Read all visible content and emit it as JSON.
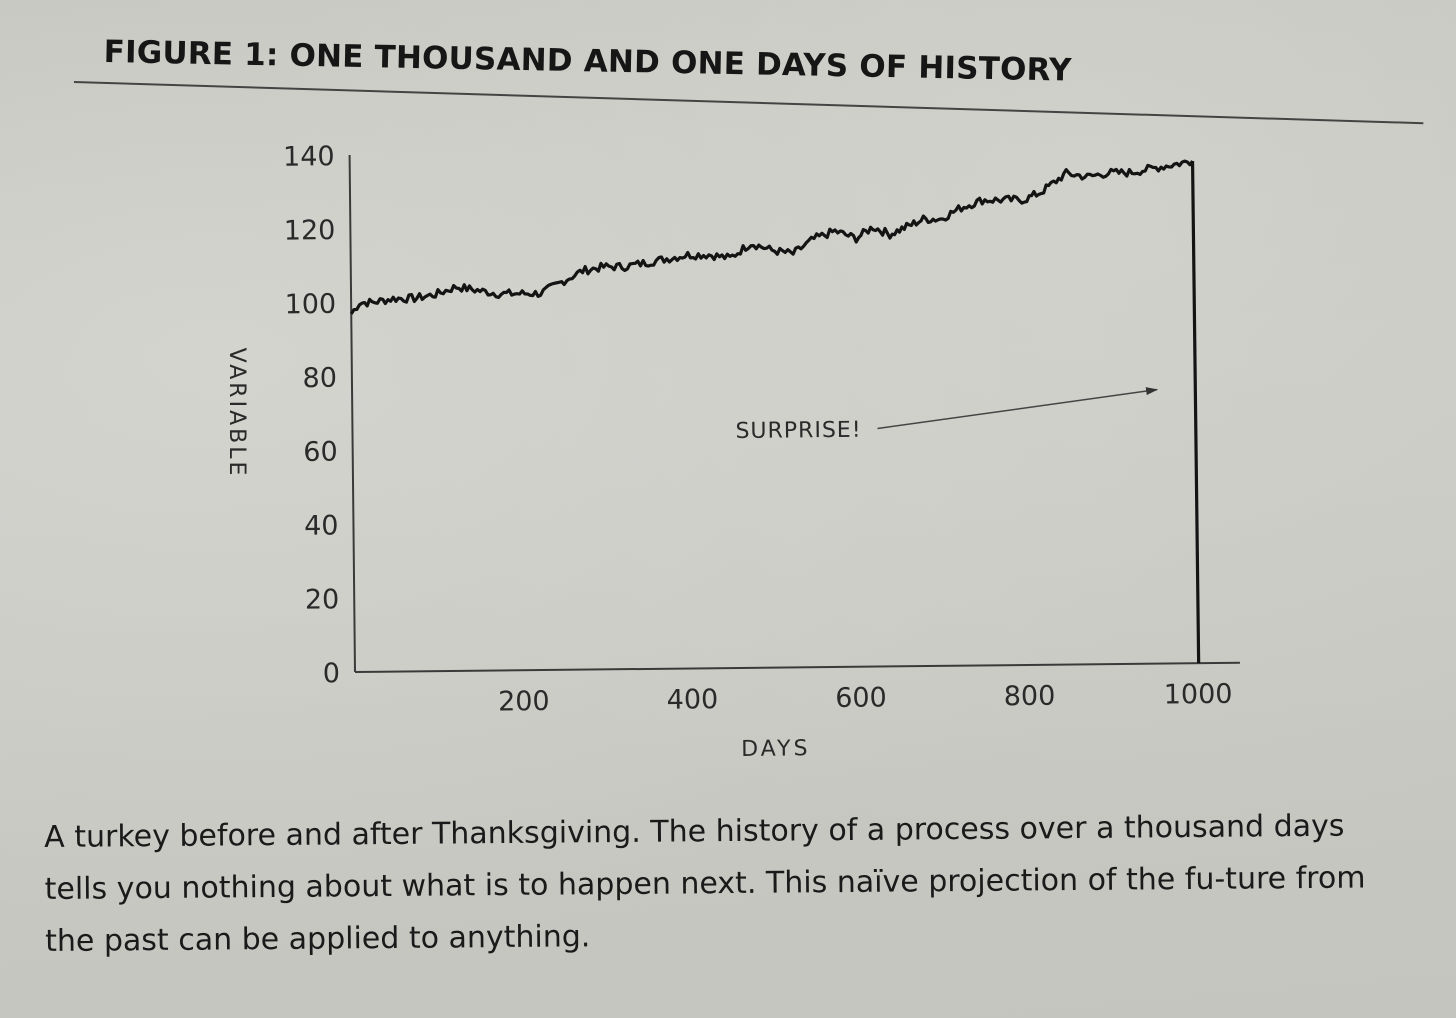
{
  "figure": {
    "title": "FIGURE 1: ONE THOUSAND AND ONE DAYS OF HISTORY",
    "caption": "A turkey before and after Thanksgiving. The history of a process over a thousand days tells you nothing about what is to happen next. This naïve projection of the fu-ture from the past can be applied to anything."
  },
  "chart_data": {
    "type": "line",
    "title": "FIGURE 1: ONE THOUSAND AND ONE DAYS OF HISTORY",
    "xlabel": "DAYS",
    "ylabel": "VARIABLE",
    "xlim": [
      0,
      1050
    ],
    "ylim": [
      0,
      140
    ],
    "xticks": [
      200,
      400,
      600,
      800,
      1000
    ],
    "yticks": [
      0,
      20,
      40,
      60,
      80,
      100,
      120,
      140
    ],
    "grid": false,
    "annotation": "SURPRISE!",
    "series": [
      {
        "x": [
          0,
          10,
          25,
          50,
          75,
          100,
          125,
          150,
          175,
          200,
          225,
          250,
          275,
          300,
          325,
          350,
          375,
          400,
          425,
          450,
          475,
          500,
          525,
          550,
          575,
          600,
          620,
          640,
          660,
          680,
          700,
          725,
          750,
          775,
          800,
          820,
          850,
          875,
          900,
          925,
          950,
          975,
          1000,
          1001
        ],
        "y": [
          97,
          100,
          100,
          101,
          101,
          102,
          104,
          103,
          102,
          102,
          102,
          105,
          108,
          109,
          109,
          110,
          111,
          112,
          112,
          111,
          115,
          113,
          112,
          116,
          118,
          116,
          119,
          117,
          119,
          121,
          121,
          124,
          126,
          126,
          126,
          128,
          133,
          132,
          133,
          133,
          134,
          135,
          136,
          0
        ]
      }
    ]
  }
}
